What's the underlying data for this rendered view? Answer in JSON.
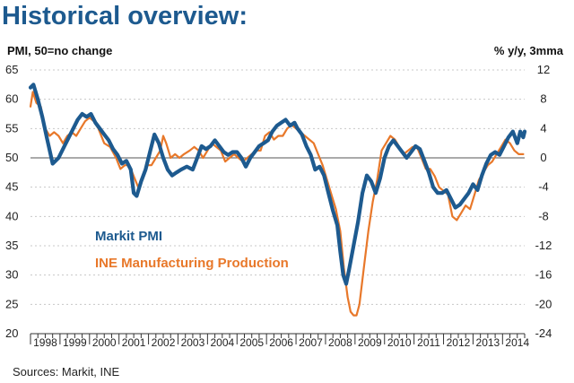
{
  "colors": {
    "pmi": "#1d5a8f",
    "production": "#e8782a",
    "title": "#1d5a8f"
  },
  "chart_data": {
    "type": "line",
    "title": "Historical overview:",
    "ylabel_left": "PMI, 50=no change",
    "ylabel_right": "% y/y, 3mma",
    "source": "Sources: Markit, INE",
    "ylim_left": [
      20,
      65
    ],
    "ylim_right": [
      -24,
      12
    ],
    "yticks_left": [
      "65",
      "60",
      "55",
      "50",
      "45",
      "40",
      "35",
      "30",
      "25",
      "20"
    ],
    "yticks_right": [
      "12",
      "8",
      "4",
      "0",
      "-4",
      "-8",
      "-12",
      "-16",
      "-20",
      "-24"
    ],
    "categories": [
      "1998",
      "1999",
      "2000",
      "2001",
      "2002",
      "2003",
      "2004",
      "2005",
      "2006",
      "2007",
      "2008",
      "2009",
      "2010",
      "2011",
      "2012",
      "2013",
      "2014"
    ],
    "x_range": [
      1998.0,
      2014.75
    ],
    "grid": "horizontal dotted",
    "reference_line": 50,
    "legend": [
      {
        "name": "Markit PMI",
        "axis": "left"
      },
      {
        "name": "INE Manufacturing Production",
        "axis": "right"
      }
    ],
    "series": [
      {
        "name": "Markit PMI",
        "axis": "left",
        "points": [
          [
            1998.0,
            62
          ],
          [
            1998.1,
            62.5
          ],
          [
            1998.25,
            60
          ],
          [
            1998.4,
            57
          ],
          [
            1998.55,
            53.5
          ],
          [
            1998.75,
            49
          ],
          [
            1998.95,
            50
          ],
          [
            1999.15,
            52
          ],
          [
            1999.3,
            53.5
          ],
          [
            1999.45,
            55
          ],
          [
            1999.6,
            56.5
          ],
          [
            1999.75,
            57.5
          ],
          [
            1999.9,
            57
          ],
          [
            2000.05,
            57.5
          ],
          [
            2000.2,
            56
          ],
          [
            2000.35,
            55
          ],
          [
            2000.5,
            54
          ],
          [
            2000.65,
            53
          ],
          [
            2000.8,
            51.5
          ],
          [
            2000.95,
            50.5
          ],
          [
            2001.1,
            49
          ],
          [
            2001.25,
            49.5
          ],
          [
            2001.4,
            48
          ],
          [
            2001.5,
            44
          ],
          [
            2001.6,
            43.5
          ],
          [
            2001.75,
            46
          ],
          [
            2001.9,
            48
          ],
          [
            2002.05,
            51
          ],
          [
            2002.2,
            54
          ],
          [
            2002.35,
            52.5
          ],
          [
            2002.5,
            50
          ],
          [
            2002.65,
            48
          ],
          [
            2002.8,
            47
          ],
          [
            2002.95,
            47.5
          ],
          [
            2003.1,
            48
          ],
          [
            2003.3,
            48.5
          ],
          [
            2003.5,
            48
          ],
          [
            2003.65,
            50
          ],
          [
            2003.8,
            52
          ],
          [
            2003.95,
            51.5
          ],
          [
            2004.1,
            52
          ],
          [
            2004.25,
            53
          ],
          [
            2004.4,
            52
          ],
          [
            2004.55,
            51
          ],
          [
            2004.7,
            50.5
          ],
          [
            2004.85,
            51
          ],
          [
            2005.0,
            51
          ],
          [
            2005.15,
            50
          ],
          [
            2005.3,
            48.5
          ],
          [
            2005.45,
            50
          ],
          [
            2005.6,
            51
          ],
          [
            2005.75,
            52
          ],
          [
            2005.9,
            52.5
          ],
          [
            2006.05,
            53
          ],
          [
            2006.2,
            54.5
          ],
          [
            2006.35,
            55.5
          ],
          [
            2006.5,
            56
          ],
          [
            2006.65,
            56.5
          ],
          [
            2006.8,
            55.5
          ],
          [
            2006.95,
            56
          ],
          [
            2007.05,
            55
          ],
          [
            2007.2,
            54
          ],
          [
            2007.35,
            52
          ],
          [
            2007.5,
            50.5
          ],
          [
            2007.65,
            48
          ],
          [
            2007.8,
            48.5
          ],
          [
            2007.95,
            47
          ],
          [
            2008.1,
            44
          ],
          [
            2008.25,
            41
          ],
          [
            2008.4,
            38.5
          ],
          [
            2008.5,
            34
          ],
          [
            2008.6,
            30
          ],
          [
            2008.7,
            28.5
          ],
          [
            2008.8,
            31
          ],
          [
            2008.95,
            35
          ],
          [
            2009.1,
            39
          ],
          [
            2009.25,
            44
          ],
          [
            2009.4,
            47
          ],
          [
            2009.55,
            46
          ],
          [
            2009.7,
            44
          ],
          [
            2009.85,
            46.5
          ],
          [
            2010.0,
            50
          ],
          [
            2010.15,
            52
          ],
          [
            2010.3,
            53
          ],
          [
            2010.45,
            52
          ],
          [
            2010.6,
            51
          ],
          [
            2010.75,
            50
          ],
          [
            2010.9,
            51
          ],
          [
            2011.05,
            52
          ],
          [
            2011.2,
            51.5
          ],
          [
            2011.35,
            49.5
          ],
          [
            2011.5,
            47.5
          ],
          [
            2011.65,
            45
          ],
          [
            2011.8,
            44
          ],
          [
            2011.95,
            44
          ],
          [
            2012.1,
            44.5
          ],
          [
            2012.25,
            43
          ],
          [
            2012.4,
            41.5
          ],
          [
            2012.55,
            42
          ],
          [
            2012.7,
            43
          ],
          [
            2012.85,
            44
          ],
          [
            2013.0,
            45.5
          ],
          [
            2013.15,
            44.5
          ],
          [
            2013.3,
            47
          ],
          [
            2013.45,
            49
          ],
          [
            2013.6,
            50.5
          ],
          [
            2013.75,
            51
          ],
          [
            2013.9,
            50.5
          ],
          [
            2014.05,
            52
          ],
          [
            2014.2,
            53.5
          ],
          [
            2014.35,
            54.5
          ],
          [
            2014.5,
            52.5
          ],
          [
            2014.6,
            54.5
          ],
          [
            2014.7,
            53.5
          ],
          [
            2014.75,
            54.5
          ]
        ]
      },
      {
        "name": "INE Manufacturing Production",
        "axis": "right",
        "points": [
          [
            1998.0,
            7
          ],
          [
            1998.08,
            9
          ],
          [
            1998.2,
            7.5
          ],
          [
            1998.35,
            7
          ],
          [
            1998.5,
            4
          ],
          [
            1998.65,
            3
          ],
          [
            1998.8,
            3.5
          ],
          [
            1998.95,
            3
          ],
          [
            1999.1,
            2
          ],
          [
            1999.25,
            3
          ],
          [
            1999.4,
            3.5
          ],
          [
            1999.55,
            3
          ],
          [
            1999.7,
            4
          ],
          [
            1999.85,
            5
          ],
          [
            2000.0,
            5.5
          ],
          [
            2000.15,
            5
          ],
          [
            2000.3,
            4
          ],
          [
            2000.5,
            2
          ],
          [
            2000.7,
            1.5
          ],
          [
            2000.9,
            0
          ],
          [
            2001.05,
            -1.5
          ],
          [
            2001.2,
            -1
          ],
          [
            2001.35,
            -1
          ],
          [
            2001.5,
            -2.5
          ],
          [
            2001.65,
            -4
          ],
          [
            2001.8,
            -3
          ],
          [
            2001.95,
            -1
          ],
          [
            2002.1,
            -1
          ],
          [
            2002.25,
            0
          ],
          [
            2002.4,
            1
          ],
          [
            2002.5,
            3
          ],
          [
            2002.6,
            2
          ],
          [
            2002.75,
            0
          ],
          [
            2002.9,
            0.5
          ],
          [
            2003.05,
            0
          ],
          [
            2003.2,
            0.5
          ],
          [
            2003.4,
            1
          ],
          [
            2003.55,
            1.5
          ],
          [
            2003.7,
            1
          ],
          [
            2003.85,
            0
          ],
          [
            2004.0,
            1
          ],
          [
            2004.15,
            2
          ],
          [
            2004.3,
            1.5
          ],
          [
            2004.45,
            1
          ],
          [
            2004.6,
            -0.5
          ],
          [
            2004.75,
            0
          ],
          [
            2004.9,
            0.5
          ],
          [
            2005.05,
            0
          ],
          [
            2005.2,
            -0.5
          ],
          [
            2005.35,
            0
          ],
          [
            2005.5,
            0.5
          ],
          [
            2005.65,
            1
          ],
          [
            2005.8,
            1
          ],
          [
            2005.95,
            3
          ],
          [
            2006.1,
            3.5
          ],
          [
            2006.25,
            2.5
          ],
          [
            2006.4,
            3
          ],
          [
            2006.55,
            3
          ],
          [
            2006.7,
            4
          ],
          [
            2006.85,
            4.5
          ],
          [
            2007.0,
            4
          ],
          [
            2007.15,
            3.5
          ],
          [
            2007.3,
            3
          ],
          [
            2007.45,
            2.5
          ],
          [
            2007.6,
            2
          ],
          [
            2007.75,
            0.5
          ],
          [
            2007.9,
            -1
          ],
          [
            2008.05,
            -3
          ],
          [
            2008.2,
            -5
          ],
          [
            2008.35,
            -7
          ],
          [
            2008.5,
            -10
          ],
          [
            2008.62,
            -15
          ],
          [
            2008.75,
            -19
          ],
          [
            2008.85,
            -21
          ],
          [
            2008.95,
            -21.5
          ],
          [
            2009.05,
            -21.5
          ],
          [
            2009.15,
            -20
          ],
          [
            2009.3,
            -15
          ],
          [
            2009.45,
            -10
          ],
          [
            2009.6,
            -6
          ],
          [
            2009.75,
            -3
          ],
          [
            2009.9,
            1
          ],
          [
            2010.05,
            2
          ],
          [
            2010.2,
            3
          ],
          [
            2010.35,
            2.5
          ],
          [
            2010.5,
            1.5
          ],
          [
            2010.65,
            0.5
          ],
          [
            2010.8,
            1
          ],
          [
            2010.95,
            1.5
          ],
          [
            2011.1,
            1.5
          ],
          [
            2011.25,
            0
          ],
          [
            2011.4,
            -1.5
          ],
          [
            2011.55,
            -1.5
          ],
          [
            2011.7,
            -2.5
          ],
          [
            2011.85,
            -4
          ],
          [
            2012.0,
            -4.5
          ],
          [
            2012.15,
            -5
          ],
          [
            2012.3,
            -8
          ],
          [
            2012.45,
            -8.5
          ],
          [
            2012.6,
            -7.5
          ],
          [
            2012.75,
            -6.5
          ],
          [
            2012.9,
            -7
          ],
          [
            2013.05,
            -5
          ],
          [
            2013.2,
            -3
          ],
          [
            2013.35,
            -2
          ],
          [
            2013.5,
            -1
          ],
          [
            2013.65,
            -0.5
          ],
          [
            2013.8,
            0.5
          ],
          [
            2013.95,
            1.5
          ],
          [
            2014.1,
            2.5
          ],
          [
            2014.25,
            2
          ],
          [
            2014.4,
            1
          ],
          [
            2014.55,
            0.5
          ],
          [
            2014.7,
            0.5
          ]
        ]
      }
    ]
  }
}
